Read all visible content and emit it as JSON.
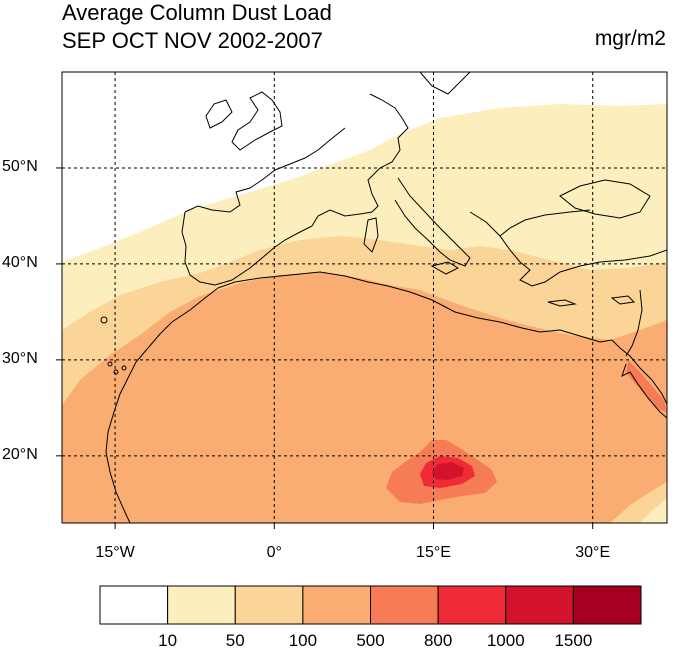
{
  "title": "Average Column Dust Load",
  "subtitle": "SEP OCT NOV 2002-2007",
  "units": "mgr/m2",
  "map": {
    "projection": "cylindrical-equidistant",
    "lon_range": [
      -20,
      37
    ],
    "lat_range": [
      13,
      60
    ],
    "lat_ticks": [
      {
        "value": 50,
        "label": "50°N"
      },
      {
        "value": 40,
        "label": "40°N"
      },
      {
        "value": 30,
        "label": "30°N"
      },
      {
        "value": 20,
        "label": "20°N"
      }
    ],
    "lon_ticks": [
      {
        "value": -15,
        "label": "15°W"
      },
      {
        "value": 0,
        "label": "0°"
      },
      {
        "value": 15,
        "label": "15°E"
      },
      {
        "value": 30,
        "label": "30°E"
      }
    ],
    "grid": "dashed",
    "colors": {
      "lt10": "#ffffff",
      "10-50": "#fcefbd",
      "50-100": "#fbd497",
      "100-500": "#f9ad72",
      "500-800": "#f67c55",
      "800-1000": "#ef2b37",
      "1000-1500": "#d3122c",
      "gt1500": "#a50021",
      "coast": "#000000"
    }
  },
  "legend": {
    "levels": [
      "10",
      "50",
      "100",
      "500",
      "800",
      "1000",
      "1500"
    ],
    "colors": [
      "#ffffff",
      "#fcefbd",
      "#fbd497",
      "#f9ad72",
      "#f67c55",
      "#ef2b37",
      "#d3122c",
      "#a50021"
    ]
  }
}
